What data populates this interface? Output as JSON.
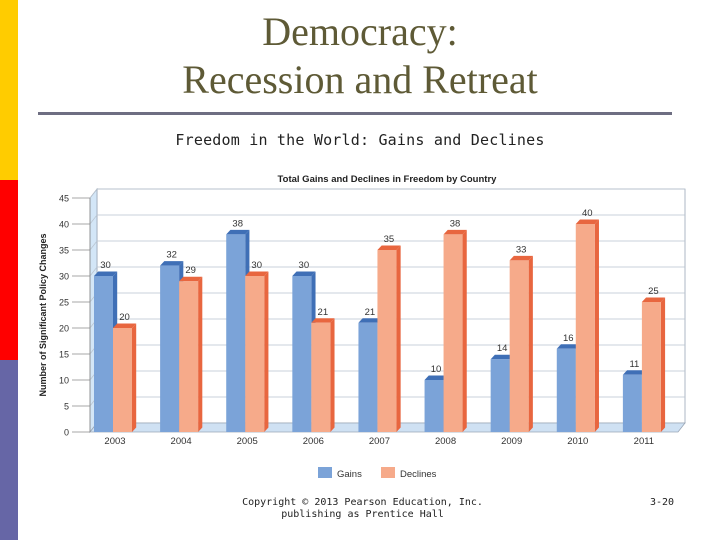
{
  "slide": {
    "title_line1": "Democracy:",
    "title_line2": "Recession and Retreat",
    "subtitle": "Freedom in the World: Gains and Declines",
    "footer_line1": "Copyright © 2013 Pearson Education, Inc.",
    "footer_line2": "publishing as Prentice Hall",
    "slide_number": "3-20"
  },
  "colors": {
    "gains": "#7BA3D8",
    "gains_dark": "#3F6FB6",
    "declines": "#F6AA8A",
    "declines_dark": "#E8663F",
    "strip_yellow": "#FFCC00",
    "strip_red": "#FF0000",
    "strip_blue": "#6666A6"
  },
  "chart_data": {
    "type": "bar",
    "title": "Total Gains and Declines in Freedom by Country",
    "xlabel": "",
    "ylabel": "Number of Significant Policy Changes",
    "ylim": [
      0,
      45
    ],
    "yticks": [
      0,
      5,
      10,
      15,
      20,
      25,
      30,
      35,
      40,
      45
    ],
    "categories": [
      "2003",
      "2004",
      "2005",
      "2006",
      "2007",
      "2008",
      "2009",
      "2010",
      "2011"
    ],
    "series": [
      {
        "name": "Gains",
        "values": [
          30,
          32,
          38,
          30,
          21,
          10,
          14,
          16,
          11
        ]
      },
      {
        "name": "Declines",
        "values": [
          20,
          29,
          30,
          21,
          35,
          38,
          33,
          40,
          25
        ]
      }
    ],
    "legend": "bottom",
    "grid": true
  }
}
